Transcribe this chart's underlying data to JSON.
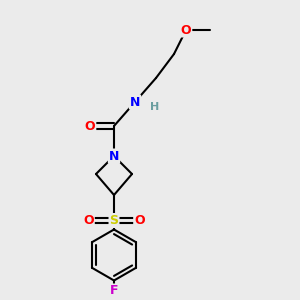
{
  "bg_color": "#ebebeb",
  "bond_color": "#000000",
  "bond_width": 1.5,
  "atom_colors": {
    "N": "#0000ff",
    "O": "#ff0000",
    "S": "#cccc00",
    "F": "#cc00cc",
    "H": "#6a9e9f",
    "C": "#000000"
  },
  "font_size_atom": 9,
  "font_size_H": 8,
  "figsize": [
    3.0,
    3.0
  ],
  "dpi": 100,
  "xlim": [
    0,
    10
  ],
  "ylim": [
    0,
    10
  ]
}
